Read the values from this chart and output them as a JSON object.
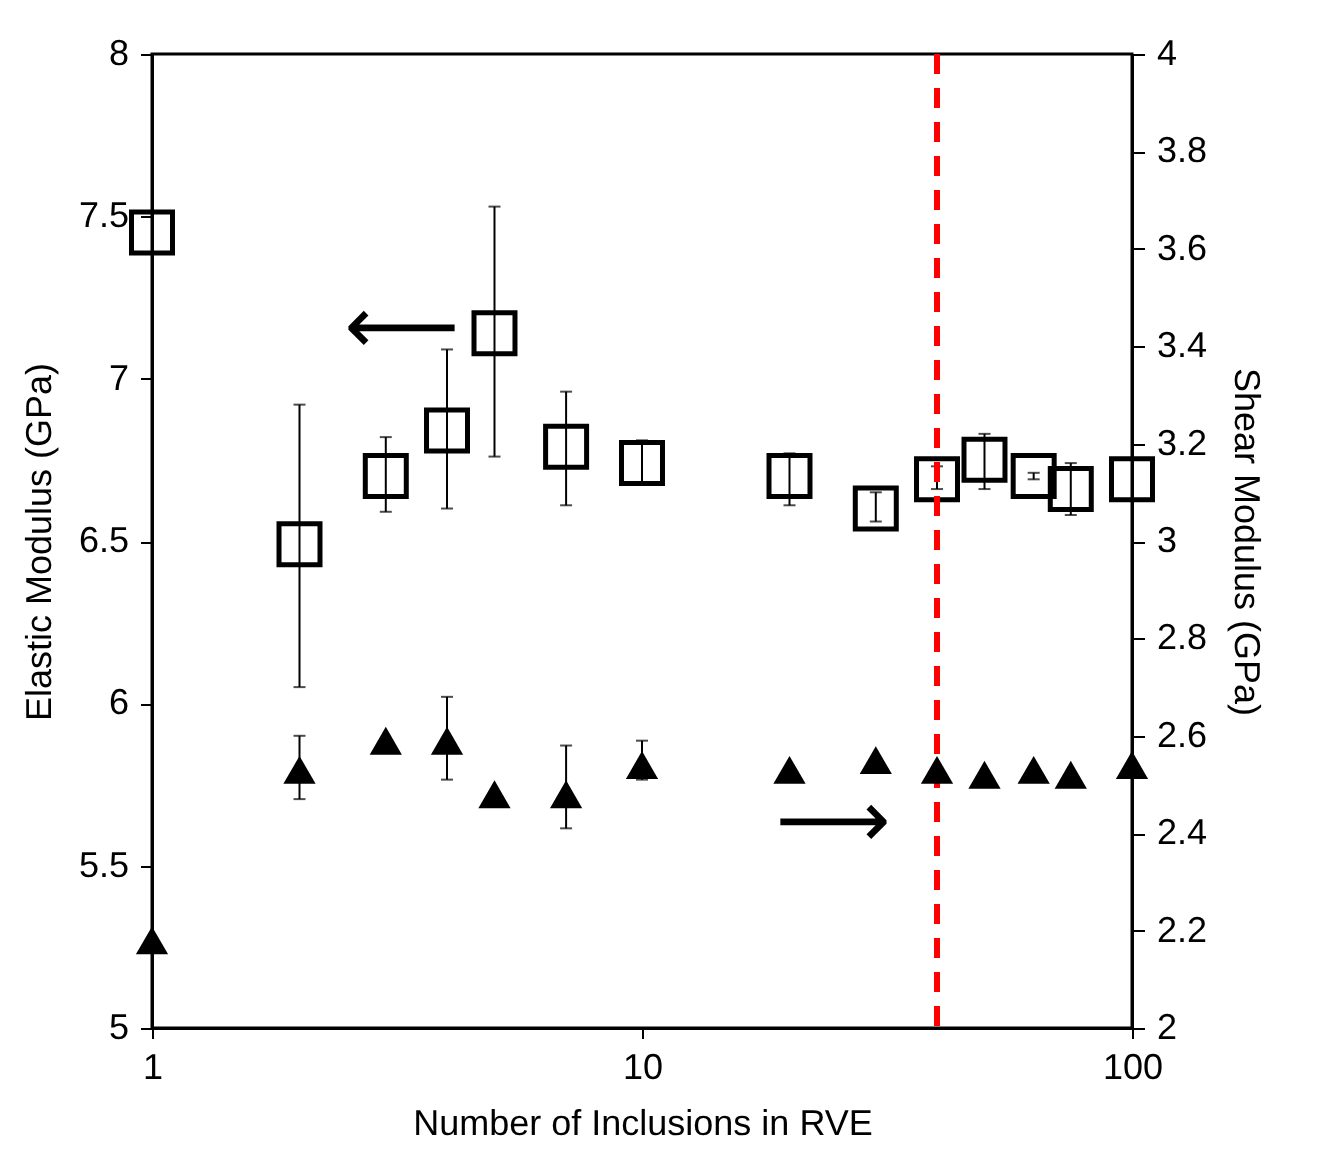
{
  "chart_data": {
    "type": "scatter",
    "xlabel": "Number of Inclusions in RVE",
    "ylabel": "Elastic Modulus (GPa)",
    "y2label": "Shear Modulus (GPa)",
    "x": [
      1,
      2,
      3,
      4,
      5,
      7,
      10,
      20,
      30,
      40,
      50,
      63,
      75,
      100
    ],
    "log": "x",
    "xlim": [
      1,
      100
    ],
    "xticks": [
      1,
      10,
      100
    ],
    "ylim": [
      5,
      8
    ],
    "yticks": [
      5,
      5.5,
      6,
      6.5,
      7,
      7.5,
      8
    ],
    "y2lim": [
      2,
      4
    ],
    "y2ticks": [
      2,
      2.2,
      2.4,
      2.6,
      2.8,
      3,
      3.2,
      3.4,
      3.6,
      3.8,
      4
    ],
    "grid": false,
    "series": [
      {
        "color": "#000000",
        "marker": "square",
        "values": [
          7.45,
          6.49,
          6.7,
          6.84,
          7.14,
          6.79,
          6.74,
          6.7,
          6.6,
          6.69,
          6.75,
          6.7,
          6.66,
          6.69
        ],
        "errors": [
          null,
          [
            6.05,
            6.92
          ],
          [
            6.59,
            6.82
          ],
          [
            6.6,
            7.09
          ],
          [
            6.76,
            7.53
          ],
          [
            6.61,
            6.96
          ],
          [
            6.68,
            6.81
          ],
          [
            6.61,
            6.77
          ],
          [
            6.56,
            6.65
          ],
          [
            6.66,
            6.73
          ],
          [
            6.66,
            6.83
          ],
          [
            6.69,
            6.71
          ],
          [
            6.58,
            6.74
          ],
          null
        ]
      },
      {
        "color": "#000000",
        "marker": "triangle",
        "axis": "y2",
        "values": [
          2.18,
          2.53,
          2.59,
          2.59,
          2.48,
          2.48,
          2.54,
          2.53,
          2.55,
          2.53,
          2.52,
          2.53,
          2.52,
          2.54
        ],
        "errors": [
          null,
          [
            2.47,
            2.6
          ],
          null,
          [
            2.51,
            2.68
          ],
          null,
          [
            2.41,
            2.58
          ],
          [
            2.51,
            2.59
          ],
          null,
          null,
          null,
          null,
          null,
          null,
          null
        ]
      }
    ],
    "ref_lines": [
      {
        "axis": "x",
        "value": 40,
        "color": "#ff0000",
        "line_style": "dashed"
      }
    ],
    "annotations": [
      "⟵",
      "⟶"
    ]
  }
}
